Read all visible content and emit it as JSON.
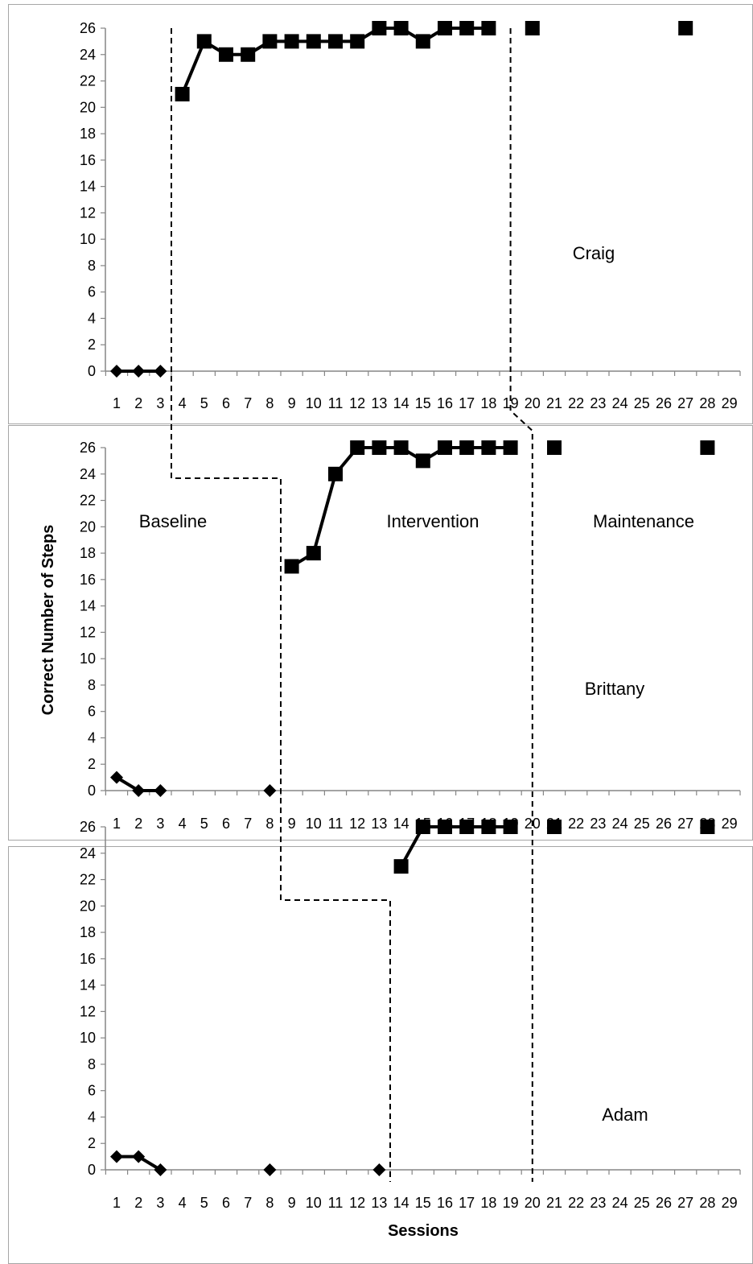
{
  "chart_data": [
    {
      "type": "line",
      "participant": "Craig",
      "ylim": [
        0,
        26
      ],
      "yticks": [
        0,
        2,
        4,
        6,
        8,
        10,
        12,
        14,
        16,
        18,
        20,
        22,
        24,
        26
      ],
      "categories": [
        "1",
        "2",
        "3",
        "4",
        "5",
        "6",
        "7",
        "8",
        "9",
        "10",
        "11",
        "12",
        "13",
        "14",
        "15",
        "16",
        "17",
        "18",
        "19",
        "20",
        "21",
        "22",
        "23",
        "24",
        "25",
        "26",
        "27",
        "28",
        "29"
      ],
      "series": [
        {
          "role": "baseline",
          "marker": "diamond",
          "x": [
            1,
            2,
            3
          ],
          "y": [
            0,
            0,
            0
          ]
        },
        {
          "role": "intervention",
          "marker": "square",
          "x": [
            4,
            5,
            6,
            7,
            8,
            9,
            10,
            11,
            12,
            13,
            14,
            15,
            16,
            17,
            18
          ],
          "y": [
            21,
            25,
            24,
            24,
            25,
            25,
            25,
            25,
            25,
            26,
            26,
            25,
            26,
            26,
            26
          ]
        },
        {
          "role": "maintenance",
          "marker": "square",
          "connected": false,
          "x": [
            20,
            27
          ],
          "y": [
            26,
            26
          ]
        }
      ],
      "labels": {
        "name": "Craig"
      }
    },
    {
      "type": "line",
      "participant": "Brittany",
      "ylim": [
        0,
        26
      ],
      "yticks": [
        0,
        2,
        4,
        6,
        8,
        10,
        12,
        14,
        16,
        18,
        20,
        22,
        24,
        26
      ],
      "categories": [
        "1",
        "2",
        "3",
        "4",
        "5",
        "6",
        "7",
        "8",
        "9",
        "10",
        "11",
        "12",
        "13",
        "14",
        "15",
        "16",
        "17",
        "18",
        "19",
        "20",
        "21",
        "22",
        "23",
        "24",
        "25",
        "26",
        "27",
        "28",
        "29"
      ],
      "series": [
        {
          "role": "baseline",
          "marker": "diamond",
          "x": [
            1,
            2,
            3
          ],
          "y": [
            1,
            0,
            0
          ]
        },
        {
          "role": "baseline-probe",
          "marker": "diamond",
          "connected": false,
          "x": [
            8
          ],
          "y": [
            0
          ]
        },
        {
          "role": "intervention",
          "marker": "square",
          "x": [
            9,
            10,
            11,
            12,
            13,
            14,
            15,
            16,
            17,
            18,
            19
          ],
          "y": [
            17,
            18,
            24,
            26,
            26,
            26,
            25,
            26,
            26,
            26,
            26
          ]
        },
        {
          "role": "maintenance",
          "marker": "square",
          "connected": false,
          "x": [
            21,
            28
          ],
          "y": [
            26,
            26
          ]
        }
      ],
      "labels": {
        "name": "Brittany",
        "baseline": "Baseline",
        "intervention": "Intervention",
        "maintenance": "Maintenance"
      },
      "ylabel": "Correct Number of Steps"
    },
    {
      "type": "line",
      "participant": "Adam",
      "ylim": [
        0,
        26
      ],
      "yticks": [
        0,
        2,
        4,
        6,
        8,
        10,
        12,
        14,
        16,
        18,
        20,
        22,
        24,
        26
      ],
      "categories": [
        "1",
        "2",
        "3",
        "4",
        "5",
        "6",
        "7",
        "8",
        "9",
        "10",
        "11",
        "12",
        "13",
        "14",
        "15",
        "16",
        "17",
        "18",
        "19",
        "20",
        "21",
        "22",
        "23",
        "24",
        "25",
        "26",
        "27",
        "28",
        "29"
      ],
      "series": [
        {
          "role": "baseline",
          "marker": "diamond",
          "x": [
            1,
            2,
            3
          ],
          "y": [
            1,
            1,
            0
          ]
        },
        {
          "role": "baseline-probe",
          "marker": "diamond",
          "connected": false,
          "x": [
            8,
            13
          ],
          "y": [
            0,
            0
          ]
        },
        {
          "role": "intervention",
          "marker": "square",
          "x": [
            14,
            15,
            16,
            17,
            18,
            19
          ],
          "y": [
            23,
            26,
            26,
            26,
            26,
            26
          ]
        },
        {
          "role": "maintenance",
          "marker": "square",
          "connected": false,
          "x": [
            21,
            28
          ],
          "y": [
            26,
            26
          ]
        }
      ],
      "labels": {
        "name": "Adam"
      },
      "xlabel": "Sessions"
    }
  ],
  "phase_lines": {
    "baseline_to_intervention": [
      3.5,
      8.5,
      13.5
    ],
    "intervention_to_maintenance": [
      19.0,
      20.0,
      20.0
    ]
  }
}
